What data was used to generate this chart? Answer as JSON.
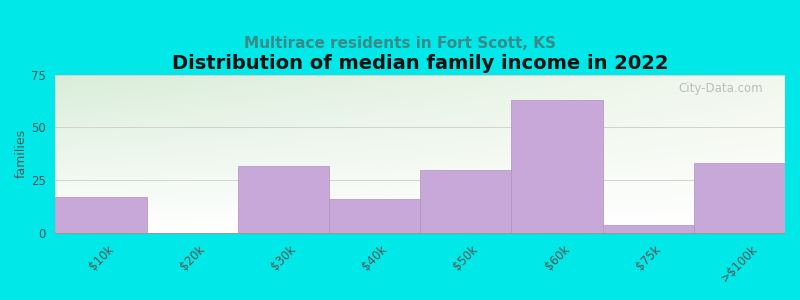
{
  "title": "Distribution of median family income in 2022",
  "subtitle": "Multirace residents in Fort Scott, KS",
  "categories": [
    "$10k",
    "$20k",
    "$30k",
    "$40k",
    "$50k",
    "$60k",
    "$75k",
    ">$100k"
  ],
  "values": [
    17,
    0,
    32,
    16,
    30,
    63,
    4,
    33
  ],
  "bar_color": "#c8a8d8",
  "bar_edge_color": "#b090c0",
  "ylabel": "families",
  "ylim": [
    0,
    75
  ],
  "yticks": [
    0,
    25,
    50,
    75
  ],
  "background_color": "#00e8e8",
  "plot_bg_color_topleft": "#d8ecd8",
  "plot_bg_color_right": "#f0f4ec",
  "plot_bg_color_bottom": "#ffffff",
  "title_fontsize": 14,
  "subtitle_fontsize": 11,
  "watermark": "City-Data.com"
}
